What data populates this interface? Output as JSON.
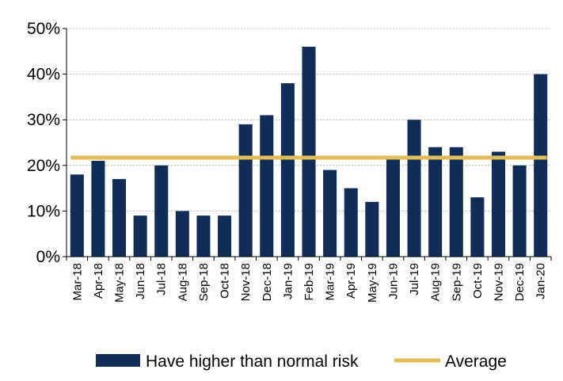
{
  "chart_data": {
    "type": "bar",
    "categories": [
      "Mar-18",
      "Apr-18",
      "May-18",
      "Jun-18",
      "Jul-18",
      "Aug-18",
      "Sep-18",
      "Oct-18",
      "Nov-18",
      "Dec-18",
      "Jan-19",
      "Feb-19",
      "Mar-19",
      "Apr-19",
      "May-19",
      "Jun-19",
      "Jul-19",
      "Aug-19",
      "Sep-19",
      "Oct-19",
      "Nov-19",
      "Dec-19",
      "Jan-20"
    ],
    "series": [
      {
        "name": "Have higher than normal risk",
        "color": "#0f2d56",
        "values": [
          18,
          21,
          17,
          9,
          20,
          10,
          9,
          9,
          29,
          31,
          38,
          46,
          19,
          15,
          12,
          22,
          30,
          24,
          24,
          13,
          23,
          20,
          40
        ]
      }
    ],
    "average": {
      "name": "Average",
      "value": 21.7,
      "color": "#e2bd55"
    },
    "ylim": [
      0,
      50
    ],
    "yticks": [
      0,
      10,
      20,
      30,
      40,
      50
    ],
    "ytick_labels": [
      "0%",
      "10%",
      "20%",
      "30%",
      "40%",
      "50%"
    ],
    "grid": true,
    "legend_position": "bottom"
  }
}
